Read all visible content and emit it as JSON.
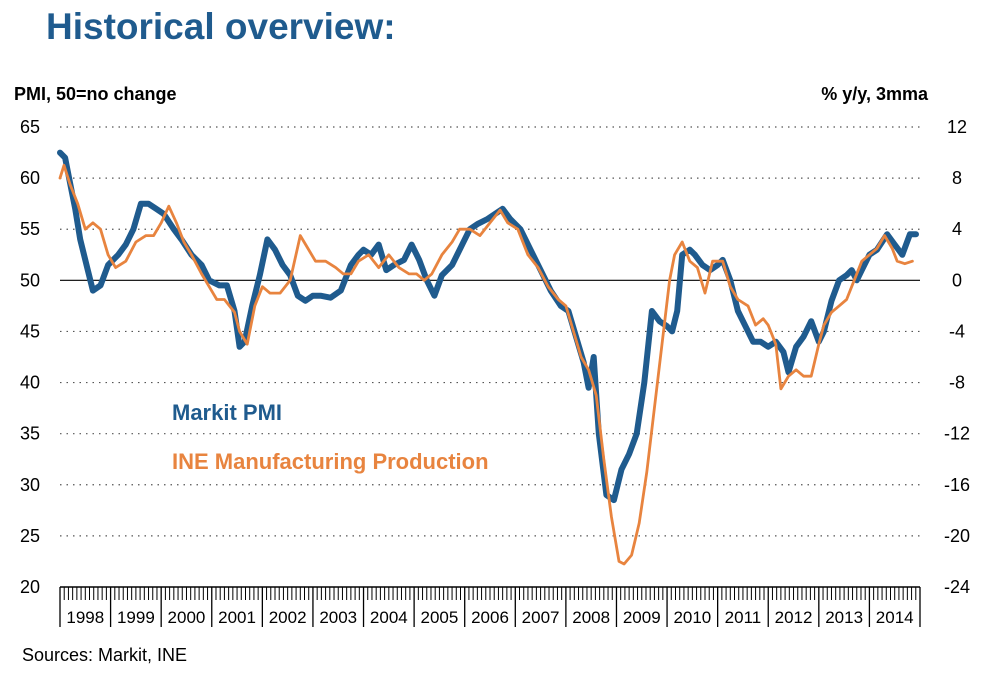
{
  "page": {
    "title": "Historical overview:",
    "source": "Sources: Markit, INE"
  },
  "chart_data": {
    "type": "line",
    "title": "Historical overview:",
    "left_axis_label": "PMI, 50=no change",
    "right_axis_label": "% y/y, 3mma",
    "left_ylim": [
      20,
      65
    ],
    "left_ticks": [
      65,
      60,
      55,
      50,
      45,
      40,
      35,
      30,
      25,
      20
    ],
    "right_ylim": [
      -24,
      12
    ],
    "right_ticks": [
      12,
      8,
      4,
      0,
      -4,
      -8,
      -12,
      -16,
      -20,
      -24
    ],
    "x_range": [
      1998.0,
      2015.0
    ],
    "x_tick_labels": [
      "1998",
      "1999",
      "2000",
      "2001",
      "2002",
      "2003",
      "2004",
      "2005",
      "2006",
      "2007",
      "2008",
      "2009",
      "2010",
      "2011",
      "2012",
      "2013",
      "2014"
    ],
    "reference_line": {
      "axis": "left",
      "value": 50
    },
    "grid": "dotted horizontal",
    "colors": {
      "pmi": "#1f5b8e",
      "ine": "#e8843f"
    },
    "series": [
      {
        "name": "Markit PMI",
        "axis": "left",
        "color": "#1f5b8e",
        "points": [
          [
            1998.0,
            62.5
          ],
          [
            1998.1,
            62.0
          ],
          [
            1998.2,
            59.5
          ],
          [
            1998.3,
            57.0
          ],
          [
            1998.4,
            54.0
          ],
          [
            1998.55,
            51.0
          ],
          [
            1998.65,
            49.0
          ],
          [
            1998.8,
            49.5
          ],
          [
            1998.95,
            51.5
          ],
          [
            1999.15,
            52.5
          ],
          [
            1999.3,
            53.5
          ],
          [
            1999.45,
            55.0
          ],
          [
            1999.6,
            57.5
          ],
          [
            1999.75,
            57.5
          ],
          [
            1999.9,
            57.0
          ],
          [
            2000.05,
            56.5
          ],
          [
            2000.25,
            55.0
          ],
          [
            2000.4,
            54.0
          ],
          [
            2000.6,
            52.5
          ],
          [
            2000.8,
            51.5
          ],
          [
            2000.95,
            50.0
          ],
          [
            2001.15,
            49.5
          ],
          [
            2001.3,
            49.5
          ],
          [
            2001.45,
            47.0
          ],
          [
            2001.55,
            43.5
          ],
          [
            2001.65,
            44.0
          ],
          [
            2001.8,
            47.5
          ],
          [
            2001.95,
            50.5
          ],
          [
            2002.1,
            54.0
          ],
          [
            2002.25,
            53.0
          ],
          [
            2002.4,
            51.5
          ],
          [
            2002.55,
            50.5
          ],
          [
            2002.7,
            48.5
          ],
          [
            2002.85,
            48.0
          ],
          [
            2003.0,
            48.5
          ],
          [
            2003.15,
            48.5
          ],
          [
            2003.35,
            48.3
          ],
          [
            2003.55,
            49.0
          ],
          [
            2003.75,
            51.5
          ],
          [
            2003.9,
            52.5
          ],
          [
            2004.0,
            53.0
          ],
          [
            2004.15,
            52.5
          ],
          [
            2004.3,
            53.5
          ],
          [
            2004.45,
            51.0
          ],
          [
            2004.6,
            51.5
          ],
          [
            2004.8,
            52.0
          ],
          [
            2004.95,
            53.5
          ],
          [
            2005.1,
            52.0
          ],
          [
            2005.25,
            50.0
          ],
          [
            2005.4,
            48.5
          ],
          [
            2005.55,
            50.5
          ],
          [
            2005.75,
            51.5
          ],
          [
            2005.95,
            53.5
          ],
          [
            2006.1,
            55.0
          ],
          [
            2006.25,
            55.5
          ],
          [
            2006.45,
            56.0
          ],
          [
            2006.6,
            56.5
          ],
          [
            2006.75,
            57.0
          ],
          [
            2006.9,
            56.0
          ],
          [
            2007.1,
            55.0
          ],
          [
            2007.3,
            53.0
          ],
          [
            2007.5,
            51.0
          ],
          [
            2007.7,
            49.0
          ],
          [
            2007.9,
            47.5
          ],
          [
            2008.05,
            47.0
          ],
          [
            2008.2,
            44.5
          ],
          [
            2008.35,
            42.0
          ],
          [
            2008.45,
            39.5
          ],
          [
            2008.55,
            42.5
          ],
          [
            2008.65,
            35.0
          ],
          [
            2008.8,
            29.0
          ],
          [
            2008.95,
            28.5
          ],
          [
            2009.1,
            31.5
          ],
          [
            2009.25,
            33.0
          ],
          [
            2009.4,
            35.0
          ],
          [
            2009.55,
            40.0
          ],
          [
            2009.7,
            47.0
          ],
          [
            2009.85,
            46.0
          ],
          [
            2010.0,
            45.5
          ],
          [
            2010.1,
            45.0
          ],
          [
            2010.2,
            47.0
          ],
          [
            2010.3,
            52.5
          ],
          [
            2010.45,
            53.0
          ],
          [
            2010.55,
            52.5
          ],
          [
            2010.7,
            51.5
          ],
          [
            2010.85,
            51.0
          ],
          [
            2011.0,
            51.5
          ],
          [
            2011.1,
            52.0
          ],
          [
            2011.25,
            50.0
          ],
          [
            2011.4,
            47.0
          ],
          [
            2011.55,
            45.5
          ],
          [
            2011.7,
            44.0
          ],
          [
            2011.85,
            44.0
          ],
          [
            2012.0,
            43.5
          ],
          [
            2012.15,
            44.0
          ],
          [
            2012.3,
            43.0
          ],
          [
            2012.4,
            41.0
          ],
          [
            2012.55,
            43.5
          ],
          [
            2012.7,
            44.5
          ],
          [
            2012.85,
            46.0
          ],
          [
            2013.0,
            44.0
          ],
          [
            2013.1,
            45.0
          ],
          [
            2013.25,
            48.0
          ],
          [
            2013.4,
            50.0
          ],
          [
            2013.55,
            50.5
          ],
          [
            2013.65,
            51.0
          ],
          [
            2013.75,
            50.0
          ],
          [
            2013.85,
            51.0
          ],
          [
            2014.0,
            52.5
          ],
          [
            2014.15,
            53.0
          ],
          [
            2014.35,
            54.5
          ],
          [
            2014.5,
            53.5
          ],
          [
            2014.65,
            52.5
          ],
          [
            2014.8,
            54.5
          ],
          [
            2014.92,
            54.5
          ]
        ]
      },
      {
        "name": "INE Manufacturing Production",
        "axis": "right",
        "color": "#e8843f",
        "points": [
          [
            1998.0,
            8.0
          ],
          [
            1998.08,
            9.0
          ],
          [
            1998.2,
            7.5
          ],
          [
            1998.35,
            6.0
          ],
          [
            1998.5,
            4.0
          ],
          [
            1998.65,
            4.5
          ],
          [
            1998.8,
            4.0
          ],
          [
            1998.95,
            2.0
          ],
          [
            1999.1,
            1.0
          ],
          [
            1999.3,
            1.5
          ],
          [
            1999.5,
            3.0
          ],
          [
            1999.7,
            3.5
          ],
          [
            1999.85,
            3.5
          ],
          [
            2000.0,
            4.5
          ],
          [
            2000.15,
            5.8
          ],
          [
            2000.3,
            4.5
          ],
          [
            2000.45,
            3.0
          ],
          [
            2000.6,
            2.0
          ],
          [
            2000.8,
            0.5
          ],
          [
            2000.95,
            -0.5
          ],
          [
            2001.1,
            -1.5
          ],
          [
            2001.25,
            -1.5
          ],
          [
            2001.45,
            -2.5
          ],
          [
            2001.55,
            -4.0
          ],
          [
            2001.7,
            -5.0
          ],
          [
            2001.85,
            -2.0
          ],
          [
            2002.0,
            -0.5
          ],
          [
            2002.15,
            -1.0
          ],
          [
            2002.35,
            -1.0
          ],
          [
            2002.55,
            0.0
          ],
          [
            2002.75,
            3.5
          ],
          [
            2002.9,
            2.5
          ],
          [
            2003.05,
            1.5
          ],
          [
            2003.25,
            1.5
          ],
          [
            2003.45,
            1.0
          ],
          [
            2003.6,
            0.5
          ],
          [
            2003.75,
            0.5
          ],
          [
            2003.9,
            1.5
          ],
          [
            2004.1,
            2.0
          ],
          [
            2004.3,
            1.0
          ],
          [
            2004.5,
            2.0
          ],
          [
            2004.7,
            1.0
          ],
          [
            2004.9,
            0.5
          ],
          [
            2005.05,
            0.5
          ],
          [
            2005.2,
            0.0
          ],
          [
            2005.35,
            0.5
          ],
          [
            2005.55,
            2.0
          ],
          [
            2005.75,
            3.0
          ],
          [
            2005.9,
            4.0
          ],
          [
            2006.1,
            4.0
          ],
          [
            2006.3,
            3.5
          ],
          [
            2006.5,
            4.5
          ],
          [
            2006.7,
            5.5
          ],
          [
            2006.85,
            4.5
          ],
          [
            2007.05,
            4.0
          ],
          [
            2007.25,
            2.0
          ],
          [
            2007.45,
            1.0
          ],
          [
            2007.65,
            -0.5
          ],
          [
            2007.85,
            -1.5
          ],
          [
            2008.0,
            -2.0
          ],
          [
            2008.15,
            -4.0
          ],
          [
            2008.3,
            -6.0
          ],
          [
            2008.45,
            -7.0
          ],
          [
            2008.6,
            -9.0
          ],
          [
            2008.75,
            -14.0
          ],
          [
            2008.9,
            -18.5
          ],
          [
            2009.05,
            -22.0
          ],
          [
            2009.15,
            -22.2
          ],
          [
            2009.3,
            -21.5
          ],
          [
            2009.45,
            -19.0
          ],
          [
            2009.6,
            -15.0
          ],
          [
            2009.75,
            -10.0
          ],
          [
            2009.9,
            -5.0
          ],
          [
            2010.05,
            0.0
          ],
          [
            2010.15,
            2.0
          ],
          [
            2010.3,
            3.0
          ],
          [
            2010.45,
            1.5
          ],
          [
            2010.6,
            1.0
          ],
          [
            2010.75,
            -1.0
          ],
          [
            2010.9,
            1.5
          ],
          [
            2011.1,
            1.5
          ],
          [
            2011.25,
            -0.5
          ],
          [
            2011.4,
            -1.5
          ],
          [
            2011.6,
            -2.0
          ],
          [
            2011.75,
            -3.5
          ],
          [
            2011.9,
            -3.0
          ],
          [
            2012.0,
            -3.5
          ],
          [
            2012.15,
            -5.0
          ],
          [
            2012.25,
            -8.5
          ],
          [
            2012.4,
            -7.5
          ],
          [
            2012.55,
            -7.0
          ],
          [
            2012.7,
            -7.5
          ],
          [
            2012.85,
            -7.5
          ],
          [
            2013.0,
            -5.0
          ],
          [
            2013.1,
            -3.5
          ],
          [
            2013.25,
            -2.5
          ],
          [
            2013.4,
            -2.0
          ],
          [
            2013.55,
            -1.5
          ],
          [
            2013.7,
            0.0
          ],
          [
            2013.85,
            1.5
          ],
          [
            2014.0,
            2.0
          ],
          [
            2014.15,
            2.5
          ],
          [
            2014.3,
            3.5
          ],
          [
            2014.45,
            2.5
          ],
          [
            2014.55,
            1.5
          ],
          [
            2014.7,
            1.3
          ],
          [
            2014.85,
            1.5
          ]
        ]
      }
    ]
  }
}
